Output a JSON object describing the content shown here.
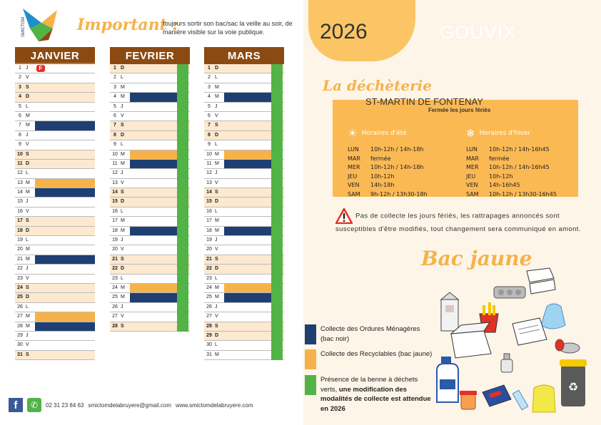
{
  "header": {
    "important_title": "Important :",
    "important_text": "toujours sortir son bac/sac la veille au soir, de manière visible sur la voie publique.",
    "logo_text": "SMICTOM"
  },
  "year": "2026",
  "city": "GOUVIX",
  "months": [
    {
      "name": "JANVIER",
      "days": [
        {
          "n": "1",
          "w": "J",
          "we": false,
          "slot": "",
          "ferie": true
        },
        {
          "n": "2",
          "w": "V",
          "we": false,
          "slot": ""
        },
        {
          "n": "3",
          "w": "S",
          "we": true,
          "slot": ""
        },
        {
          "n": "4",
          "w": "D",
          "we": true,
          "slot": ""
        },
        {
          "n": "5",
          "w": "L",
          "we": false,
          "slot": ""
        },
        {
          "n": "6",
          "w": "M",
          "we": false,
          "slot": ""
        },
        {
          "n": "7",
          "w": "M",
          "we": false,
          "slot": "om"
        },
        {
          "n": "8",
          "w": "J",
          "we": false,
          "slot": ""
        },
        {
          "n": "9",
          "w": "V",
          "we": false,
          "slot": ""
        },
        {
          "n": "10",
          "w": "S",
          "we": true,
          "slot": ""
        },
        {
          "n": "11",
          "w": "D",
          "we": true,
          "slot": ""
        },
        {
          "n": "12",
          "w": "L",
          "we": false,
          "slot": ""
        },
        {
          "n": "13",
          "w": "M",
          "we": false,
          "slot": "cr"
        },
        {
          "n": "14",
          "w": "M",
          "we": false,
          "slot": "om"
        },
        {
          "n": "15",
          "w": "J",
          "we": false,
          "slot": ""
        },
        {
          "n": "16",
          "w": "V",
          "we": false,
          "slot": ""
        },
        {
          "n": "17",
          "w": "S",
          "we": true,
          "slot": ""
        },
        {
          "n": "18",
          "w": "D",
          "we": true,
          "slot": ""
        },
        {
          "n": "19",
          "w": "L",
          "we": false,
          "slot": ""
        },
        {
          "n": "20",
          "w": "M",
          "we": false,
          "slot": ""
        },
        {
          "n": "21",
          "w": "M",
          "we": false,
          "slot": "om"
        },
        {
          "n": "22",
          "w": "J",
          "we": false,
          "slot": ""
        },
        {
          "n": "23",
          "w": "V",
          "we": false,
          "slot": ""
        },
        {
          "n": "24",
          "w": "S",
          "we": true,
          "slot": ""
        },
        {
          "n": "25",
          "w": "D",
          "we": true,
          "slot": ""
        },
        {
          "n": "26",
          "w": "L",
          "we": false,
          "slot": ""
        },
        {
          "n": "27",
          "w": "M",
          "we": false,
          "slot": "cr"
        },
        {
          "n": "28",
          "w": "M",
          "we": false,
          "slot": "om"
        },
        {
          "n": "29",
          "w": "J",
          "we": false,
          "slot": ""
        },
        {
          "n": "30",
          "w": "V",
          "we": false,
          "slot": ""
        },
        {
          "n": "31",
          "w": "S",
          "we": true,
          "slot": ""
        }
      ]
    },
    {
      "name": "FEVRIER",
      "days": [
        {
          "n": "1",
          "w": "D",
          "we": true,
          "slot": ""
        },
        {
          "n": "2",
          "w": "L",
          "we": false,
          "slot": ""
        },
        {
          "n": "3",
          "w": "M",
          "we": false,
          "slot": ""
        },
        {
          "n": "4",
          "w": "M",
          "we": false,
          "slot": "om"
        },
        {
          "n": "5",
          "w": "J",
          "we": false,
          "slot": ""
        },
        {
          "n": "6",
          "w": "V",
          "we": false,
          "slot": ""
        },
        {
          "n": "7",
          "w": "S",
          "we": true,
          "slot": ""
        },
        {
          "n": "8",
          "w": "D",
          "we": true,
          "slot": ""
        },
        {
          "n": "9",
          "w": "L",
          "we": false,
          "slot": ""
        },
        {
          "n": "10",
          "w": "M",
          "we": false,
          "slot": "cr"
        },
        {
          "n": "11",
          "w": "M",
          "we": false,
          "slot": "om"
        },
        {
          "n": "12",
          "w": "J",
          "we": false,
          "slot": ""
        },
        {
          "n": "13",
          "w": "V",
          "we": false,
          "slot": ""
        },
        {
          "n": "14",
          "w": "S",
          "we": true,
          "slot": ""
        },
        {
          "n": "15",
          "w": "D",
          "we": true,
          "slot": ""
        },
        {
          "n": "16",
          "w": "L",
          "we": false,
          "slot": ""
        },
        {
          "n": "17",
          "w": "M",
          "we": false,
          "slot": ""
        },
        {
          "n": "18",
          "w": "M",
          "we": false,
          "slot": "om"
        },
        {
          "n": "19",
          "w": "J",
          "we": false,
          "slot": ""
        },
        {
          "n": "20",
          "w": "V",
          "we": false,
          "slot": ""
        },
        {
          "n": "21",
          "w": "S",
          "we": true,
          "slot": ""
        },
        {
          "n": "22",
          "w": "D",
          "we": true,
          "slot": ""
        },
        {
          "n": "23",
          "w": "L",
          "we": false,
          "slot": ""
        },
        {
          "n": "24",
          "w": "M",
          "we": false,
          "slot": "cr"
        },
        {
          "n": "25",
          "w": "M",
          "we": false,
          "slot": "om"
        },
        {
          "n": "26",
          "w": "J",
          "we": false,
          "slot": ""
        },
        {
          "n": "27",
          "w": "V",
          "we": false,
          "slot": ""
        },
        {
          "n": "28",
          "w": "S",
          "we": true,
          "slot": ""
        }
      ]
    },
    {
      "name": "MARS",
      "days": [
        {
          "n": "1",
          "w": "D",
          "we": true,
          "slot": ""
        },
        {
          "n": "2",
          "w": "L",
          "we": false,
          "slot": ""
        },
        {
          "n": "3",
          "w": "M",
          "we": false,
          "slot": ""
        },
        {
          "n": "4",
          "w": "M",
          "we": false,
          "slot": "om"
        },
        {
          "n": "5",
          "w": "J",
          "we": false,
          "slot": ""
        },
        {
          "n": "6",
          "w": "V",
          "we": false,
          "slot": ""
        },
        {
          "n": "7",
          "w": "S",
          "we": true,
          "slot": ""
        },
        {
          "n": "8",
          "w": "D",
          "we": true,
          "slot": ""
        },
        {
          "n": "9",
          "w": "L",
          "we": false,
          "slot": ""
        },
        {
          "n": "10",
          "w": "M",
          "we": false,
          "slot": "cr"
        },
        {
          "n": "11",
          "w": "M",
          "we": false,
          "slot": "om"
        },
        {
          "n": "12",
          "w": "J",
          "we": false,
          "slot": ""
        },
        {
          "n": "13",
          "w": "V",
          "we": false,
          "slot": ""
        },
        {
          "n": "14",
          "w": "S",
          "we": true,
          "slot": ""
        },
        {
          "n": "15",
          "w": "D",
          "we": true,
          "slot": ""
        },
        {
          "n": "16",
          "w": "L",
          "we": false,
          "slot": ""
        },
        {
          "n": "17",
          "w": "M",
          "we": false,
          "slot": ""
        },
        {
          "n": "18",
          "w": "M",
          "we": false,
          "slot": "om"
        },
        {
          "n": "19",
          "w": "J",
          "we": false,
          "slot": ""
        },
        {
          "n": "20",
          "w": "V",
          "we": false,
          "slot": ""
        },
        {
          "n": "21",
          "w": "S",
          "we": true,
          "slot": ""
        },
        {
          "n": "22",
          "w": "D",
          "we": true,
          "slot": ""
        },
        {
          "n": "23",
          "w": "L",
          "we": false,
          "slot": ""
        },
        {
          "n": "24",
          "w": "M",
          "we": false,
          "slot": "cr"
        },
        {
          "n": "25",
          "w": "M",
          "we": false,
          "slot": "om"
        },
        {
          "n": "26",
          "w": "J",
          "we": false,
          "slot": ""
        },
        {
          "n": "27",
          "w": "V",
          "we": false,
          "slot": ""
        },
        {
          "n": "28",
          "w": "S",
          "we": true,
          "slot": ""
        },
        {
          "n": "29",
          "w": "D",
          "we": true,
          "slot": ""
        },
        {
          "n": "30",
          "w": "L",
          "we": false,
          "slot": ""
        },
        {
          "n": "31",
          "w": "M",
          "we": false,
          "slot": ""
        }
      ]
    }
  ],
  "ferie_badge": "F",
  "decheterie": {
    "title": "La déchèterie",
    "location": "ST-MARTIN DE FONTENAY",
    "closed": "Fermée les jours fériés",
    "summer": {
      "title": "Horaires d'été",
      "rows": [
        {
          "d": "LUN",
          "h": " 10h-12h / 14h-18h"
        },
        {
          "d": "MAR",
          "h": "fermée"
        },
        {
          "d": "MER",
          "h": "10h-12h / 14h-18h"
        },
        {
          "d": "JEU",
          "h": "10h-12h"
        },
        {
          "d": "VEN",
          "h": " 14h-18h"
        },
        {
          "d": "SAM",
          "h": "9h-12h / 13h30-18h"
        }
      ]
    },
    "winter": {
      "title": "Horaires d'hiver",
      "rows": [
        {
          "d": "LUN",
          "h": "10h-12h / 14h-16h45"
        },
        {
          "d": "MAR",
          "h": "fermée"
        },
        {
          "d": "MER",
          "h": "10h-12h / 14h-16h45"
        },
        {
          "d": "JEU",
          "h": "10h-12h"
        },
        {
          "d": "VEN",
          "h": " 14h-16h45"
        },
        {
          "d": "SAM",
          "h": "10h-12h / 13h30-16h45"
        }
      ]
    }
  },
  "warning": "Pas de collecte les jours fériés, les rattrapages annoncés sont susceptibles d'être modifiés, tout changement sera communiqué en amont.",
  "bac_jaune_title": "Bac jaune",
  "legend": [
    {
      "color": "#1f3f73",
      "text": "Collecte des Ordures Ménagères (bac noir)"
    },
    {
      "color": "#f6b24a",
      "text": "Collecte des Recyclables (bac jaune)"
    },
    {
      "color": "#52b346",
      "text": "Présence de la benne à déchets verts, ",
      "bold": "une modification des modalités de collecte est attendue en 2026"
    }
  ],
  "footer": {
    "phone": "02 31 23 84 63",
    "email": "smictomdelabruyere@gmail.com",
    "website": "www.smictomdelabruyere.com"
  }
}
